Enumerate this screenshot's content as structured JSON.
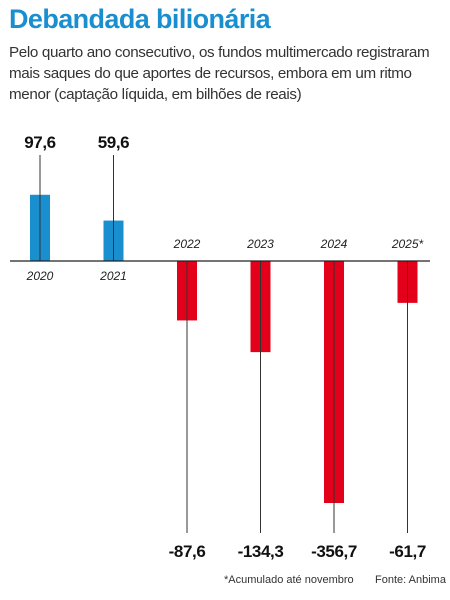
{
  "header": {
    "title": "Debandada bilionária",
    "subtitle": "Pelo quarto ano consecutivo, os fundos multimercado registraram mais saques do que aportes de recursos, embora em um ritmo menor (captação líquida, em bilhões de reais)"
  },
  "chart_data": {
    "type": "bar",
    "categories": [
      "2020",
      "2021",
      "2022",
      "2023",
      "2024",
      "2025*"
    ],
    "values": [
      97.6,
      59.6,
      -87.6,
      -134.3,
      -356.7,
      -61.7
    ],
    "value_labels": [
      "97,6",
      "59,6",
      "-87,6",
      "-134,3",
      "-356,7",
      "-61,7"
    ],
    "ylim": [
      -356.7,
      97.6
    ],
    "grid": false,
    "legend": "none",
    "colors": {
      "positive": "#1a8fd0",
      "negative": "#e3001b",
      "axis": "#222222",
      "leader": "#333333",
      "title": "#1a8fd0"
    }
  },
  "footer": {
    "footnote": "*Acumulado até novembro",
    "source": "Fonte: Anbima"
  }
}
